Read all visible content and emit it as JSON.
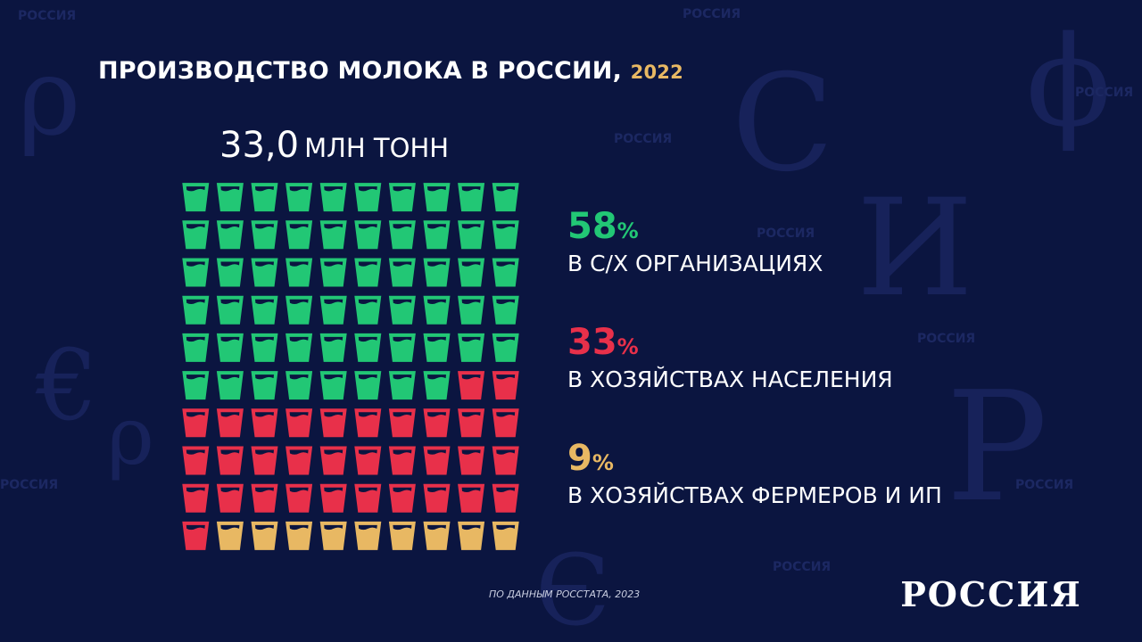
{
  "title": {
    "main": "ПРОИЗВОДСТВО МОЛОКА В РОССИИ,",
    "year": "2022"
  },
  "total": {
    "value": "33,0",
    "unit": "МЛН ТОНН"
  },
  "chart_data": {
    "type": "pictogram",
    "grid": {
      "rows": 10,
      "cols": 10
    },
    "total": 33.0,
    "unit": "МЛН ТОНН",
    "series": [
      {
        "name": "В С/Х ОРГАНИЗАЦИЯХ",
        "value": 58,
        "color": "#22c775"
      },
      {
        "name": "В ХОЗЯЙСТВАХ НАСЕЛЕНИЯ",
        "value": 33,
        "color": "#e8304a"
      },
      {
        "name": "В ХОЗЯЙСТВАХ ФЕРМЕРОВ И ИП",
        "value": 9,
        "color": "#e8b863"
      }
    ]
  },
  "stats": [
    {
      "pct": "58",
      "sign": "%",
      "label": "В С/Х ОРГАНИЗАЦИЯХ",
      "color": "#22c775"
    },
    {
      "pct": "33",
      "sign": "%",
      "label": "В ХОЗЯЙСТВАХ НАСЕЛЕНИЯ",
      "color": "#e8304a"
    },
    {
      "pct": "9",
      "sign": "%",
      "label": "В ХОЗЯЙСТВАХ ФЕРМЕРОВ И ИП",
      "color": "#e8b863"
    }
  ],
  "source": "ПО ДАННЫМ РОССТАТА, 2023",
  "logo": "РОССИЯ",
  "watermark": "РОССИЯ",
  "colors": {
    "background": "#0b1540",
    "accent_gold": "#e8b863",
    "text": "#ffffff"
  }
}
